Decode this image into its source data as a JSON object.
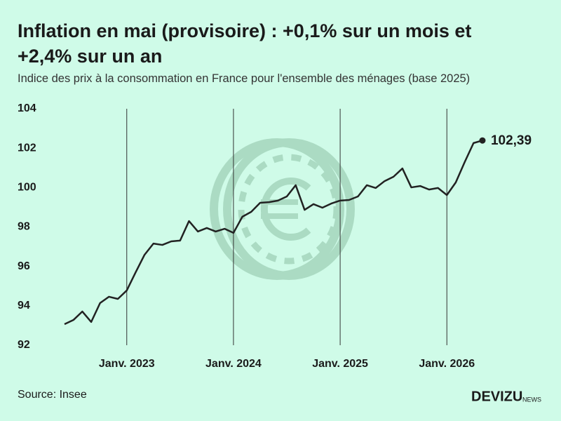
{
  "chart_data": {
    "type": "line",
    "title": "Inflation en mai (provisoire) : +0,1% sur un mois et +2,4% sur un an",
    "subtitle": "Indice des prix à la consommation en France pour l'ensemble des ménages (base 2025)",
    "categories": [
      null,
      null,
      null,
      null,
      null,
      null,
      null,
      "Janv. 2023",
      null,
      null,
      null,
      null,
      null,
      null,
      null,
      null,
      null,
      null,
      null,
      "Janv. 2024",
      null,
      null,
      null,
      null,
      null,
      null,
      null,
      null,
      null,
      null,
      null,
      "Janv. 2025",
      null,
      null,
      null,
      null,
      null,
      null,
      null,
      null,
      null,
      null,
      null,
      "Janv. 2026",
      null,
      null,
      null,
      null
    ],
    "series": [
      {
        "name": null,
        "color": "#222222",
        "values": [
          93.07,
          93.28,
          93.71,
          93.18,
          94.14,
          94.46,
          94.35,
          94.78,
          95.7,
          96.59,
          97.16,
          97.09,
          97.27,
          97.31,
          98.3,
          97.77,
          97.95,
          97.77,
          97.91,
          97.7,
          98.52,
          98.77,
          99.23,
          99.26,
          99.34,
          99.55,
          100.12,
          98.87,
          99.16,
          98.98,
          99.19,
          99.34,
          99.37,
          99.55,
          100.12,
          99.98,
          100.33,
          100.55,
          100.97,
          100.01,
          100.08,
          99.9,
          99.98,
          99.62,
          100.26,
          101.29,
          102.26,
          102.39
        ],
        "value_labels": [
          null,
          null,
          null,
          null,
          null,
          null,
          null,
          null,
          null,
          null,
          null,
          null,
          null,
          null,
          null,
          null,
          null,
          null,
          null,
          null,
          null,
          null,
          null,
          null,
          null,
          null,
          null,
          null,
          null,
          null,
          null,
          null,
          null,
          null,
          null,
          null,
          null,
          null,
          null,
          null,
          null,
          null,
          null,
          null,
          null,
          null,
          null,
          "102,39"
        ]
      }
    ],
    "ylim": [
      92,
      104
    ],
    "yticks": [
      92,
      94,
      96,
      98,
      100,
      102,
      104
    ],
    "xgrid": true,
    "background": "#cffbe8",
    "source": "Source: Insee",
    "brand": "DEVIZU",
    "brand_suffix": "NEWS"
  }
}
